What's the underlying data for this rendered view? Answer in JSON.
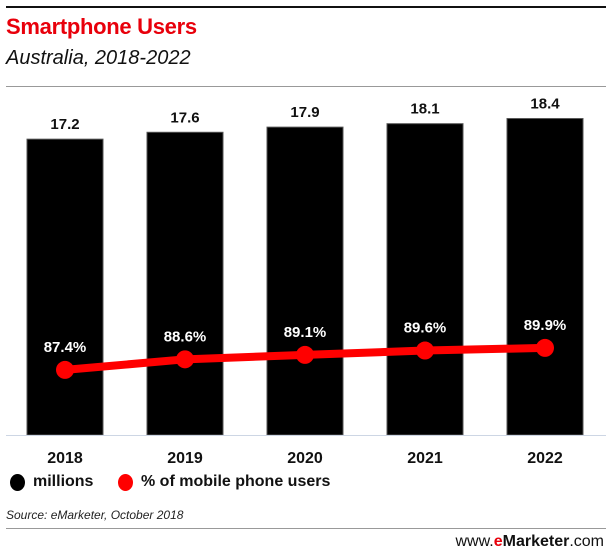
{
  "title": "Smartphone Users",
  "subtitle": "Australia, 2018-2022",
  "source": "Source: eMarketer, October 2018",
  "site": {
    "prefix": "www.",
    "brand_e": "e",
    "brand_rest": "Marketer",
    ".suffix": "",
    "suffix": ".com"
  },
  "colors": {
    "bars": "#000000",
    "line": "#ff0000",
    "title": "#e8000b"
  },
  "chart_data": {
    "type": "bar+line",
    "title": "Smartphone Users",
    "subtitle": "Australia, 2018-2022",
    "categories": [
      "2018",
      "2019",
      "2020",
      "2021",
      "2022"
    ],
    "series": [
      {
        "name": "millions",
        "type": "bar",
        "values": [
          17.2,
          17.6,
          17.9,
          18.1,
          18.4
        ],
        "labels": [
          "17.2",
          "17.6",
          "17.9",
          "18.1",
          "18.4"
        ]
      },
      {
        "name": "% of mobile phone users",
        "type": "line",
        "values": [
          87.4,
          88.6,
          89.1,
          89.6,
          89.9
        ],
        "labels": [
          "87.4%",
          "88.6%",
          "89.1%",
          "89.6%",
          "89.9%"
        ]
      }
    ],
    "legend": "bottom-left",
    "grid": false
  }
}
